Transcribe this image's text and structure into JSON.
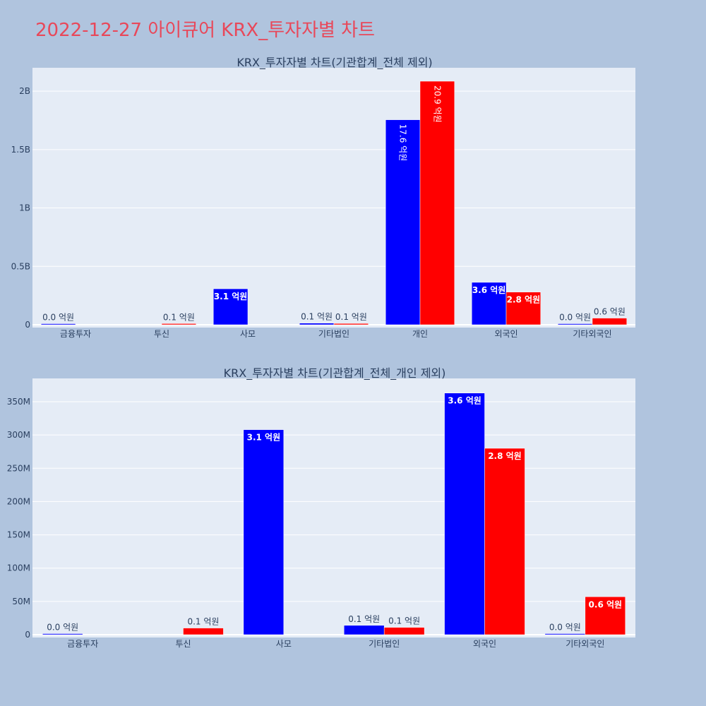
{
  "title": "2022-12-27 아이큐어 KRX_투자자별 차트",
  "colors": {
    "buy": "#0000ff",
    "sell": "#ff0000",
    "plot_bg": "#e5ecf6",
    "page_bg": "#b0c4de",
    "title": "#e8485a"
  },
  "chart_data": [
    {
      "type": "bar",
      "title": "KRX_투자자별 차트(기관합계_전체 제외)",
      "categories": [
        "금융투자",
        "투신",
        "사모",
        "기타법인",
        "개인",
        "외국인",
        "기타외국인"
      ],
      "yticks": [
        0,
        500000000,
        1000000000,
        1500000000,
        2000000000
      ],
      "ytick_labels": [
        "0",
        "0.5B",
        "1B",
        "1.5B",
        "2B"
      ],
      "ylim": [
        0,
        2200000000
      ],
      "grid": true,
      "series": [
        {
          "values": [
            1000000,
            null,
            308000000,
            14000000,
            1755000000,
            363000000,
            1000000
          ],
          "labels": [
            "0.0 억원",
            "",
            "3.1 억원",
            "0.1 억원",
            "17.6 억원",
            "3.6 억원",
            "0.0 억원"
          ]
        },
        {
          "values": [
            null,
            10000000,
            null,
            11000000,
            2085000000,
            280000000,
            57000000
          ],
          "labels": [
            "",
            "0.1 억원",
            "",
            "0.1 억원",
            "20.9 억원",
            "2.8 억원",
            "0.6 억원"
          ]
        }
      ]
    },
    {
      "type": "bar",
      "title": "KRX_투자자별 차트(기관합계_전체_개인 제외)",
      "categories": [
        "금융투자",
        "투신",
        "사모",
        "기타법인",
        "외국인",
        "기타외국인"
      ],
      "yticks": [
        0,
        50000000,
        100000000,
        150000000,
        200000000,
        250000000,
        300000000,
        350000000
      ],
      "ytick_labels": [
        "0",
        "50M",
        "100M",
        "150M",
        "200M",
        "250M",
        "300M",
        "350M"
      ],
      "ylim": [
        0,
        385000000
      ],
      "grid": true,
      "series": [
        {
          "values": [
            1000000,
            null,
            308000000,
            14000000,
            363000000,
            1000000
          ],
          "labels": [
            "0.0 억원",
            "",
            "3.1 억원",
            "0.1 억원",
            "3.6 억원",
            "0.0 억원"
          ]
        },
        {
          "values": [
            null,
            10000000,
            null,
            11000000,
            280000000,
            57000000
          ],
          "labels": [
            "",
            "0.1 억원",
            "",
            "0.1 억원",
            "2.8 억원",
            "0.6 억원"
          ]
        }
      ]
    }
  ]
}
